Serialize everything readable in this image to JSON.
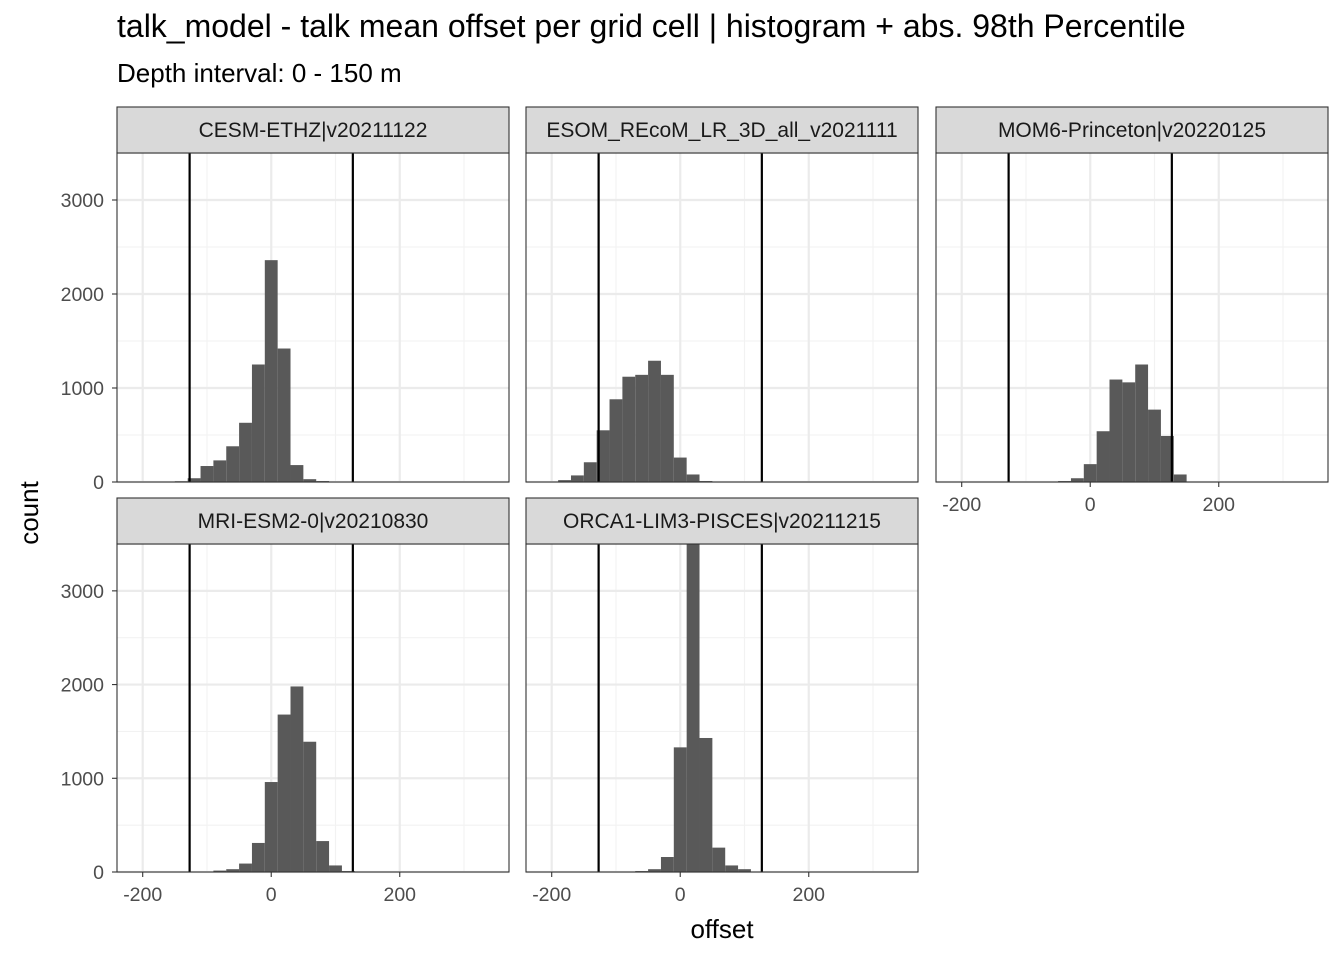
{
  "title": "talk_model  -  talk mean offset per grid cell | histogram + abs. 98th Percentile",
  "subtitle": "Depth interval: 0 - 150 m",
  "chart_data": {
    "type": "bar",
    "subtype": "faceted histogram with vertical reference lines",
    "xlabel": "offset",
    "ylabel": "count",
    "xlim": [
      -240,
      370
    ],
    "ylim": [
      0,
      3500
    ],
    "x_ticks": [
      -200,
      0,
      200
    ],
    "x_tick_labels": [
      "-200",
      "0",
      "200"
    ],
    "y_ticks": [
      0,
      1000,
      2000,
      3000
    ],
    "y_tick_labels": [
      "0",
      "1000",
      "2000",
      "3000"
    ],
    "bin_width": 20,
    "grid": true,
    "bar_color": "#595959",
    "reference_line_color": "#000000",
    "reference_lines": [
      -127,
      127
    ],
    "facets": [
      {
        "label": "CESM-ETHZ|v20211122",
        "bin_starts": [
          -150,
          -130,
          -110,
          -90,
          -70,
          -50,
          -30,
          -10,
          10,
          30,
          50,
          70
        ],
        "counts": [
          8,
          40,
          170,
          230,
          380,
          630,
          1250,
          2360,
          1420,
          180,
          30,
          10
        ]
      },
      {
        "label": "ESOM_REcoM_LR_3D_all_v2021111",
        "bin_starts": [
          -210,
          -190,
          -170,
          -150,
          -130,
          -110,
          -90,
          -70,
          -50,
          -30,
          -10,
          10,
          30
        ],
        "counts": [
          5,
          20,
          70,
          210,
          550,
          880,
          1120,
          1140,
          1290,
          1140,
          260,
          80,
          10
        ]
      },
      {
        "label": "MOM6-Princeton|v20220125",
        "bin_starts": [
          -50,
          -30,
          -10,
          10,
          30,
          50,
          70,
          90,
          110,
          130
        ],
        "counts": [
          10,
          40,
          190,
          540,
          1090,
          1060,
          1250,
          770,
          490,
          80
        ]
      },
      {
        "label": "MRI-ESM2-0|v20210830",
        "bin_starts": [
          -110,
          -90,
          -70,
          -50,
          -30,
          -10,
          10,
          30,
          50,
          70,
          90,
          110
        ],
        "counts": [
          5,
          15,
          30,
          90,
          310,
          960,
          1680,
          1980,
          1390,
          330,
          70,
          10
        ]
      },
      {
        "label": "ORCA1-LIM3-PISCES|v20211215",
        "bin_starts": [
          -70,
          -50,
          -30,
          -10,
          10,
          30,
          50,
          70,
          90
        ],
        "counts": [
          10,
          30,
          160,
          1330,
          3500,
          1430,
          260,
          70,
          30
        ]
      }
    ]
  }
}
